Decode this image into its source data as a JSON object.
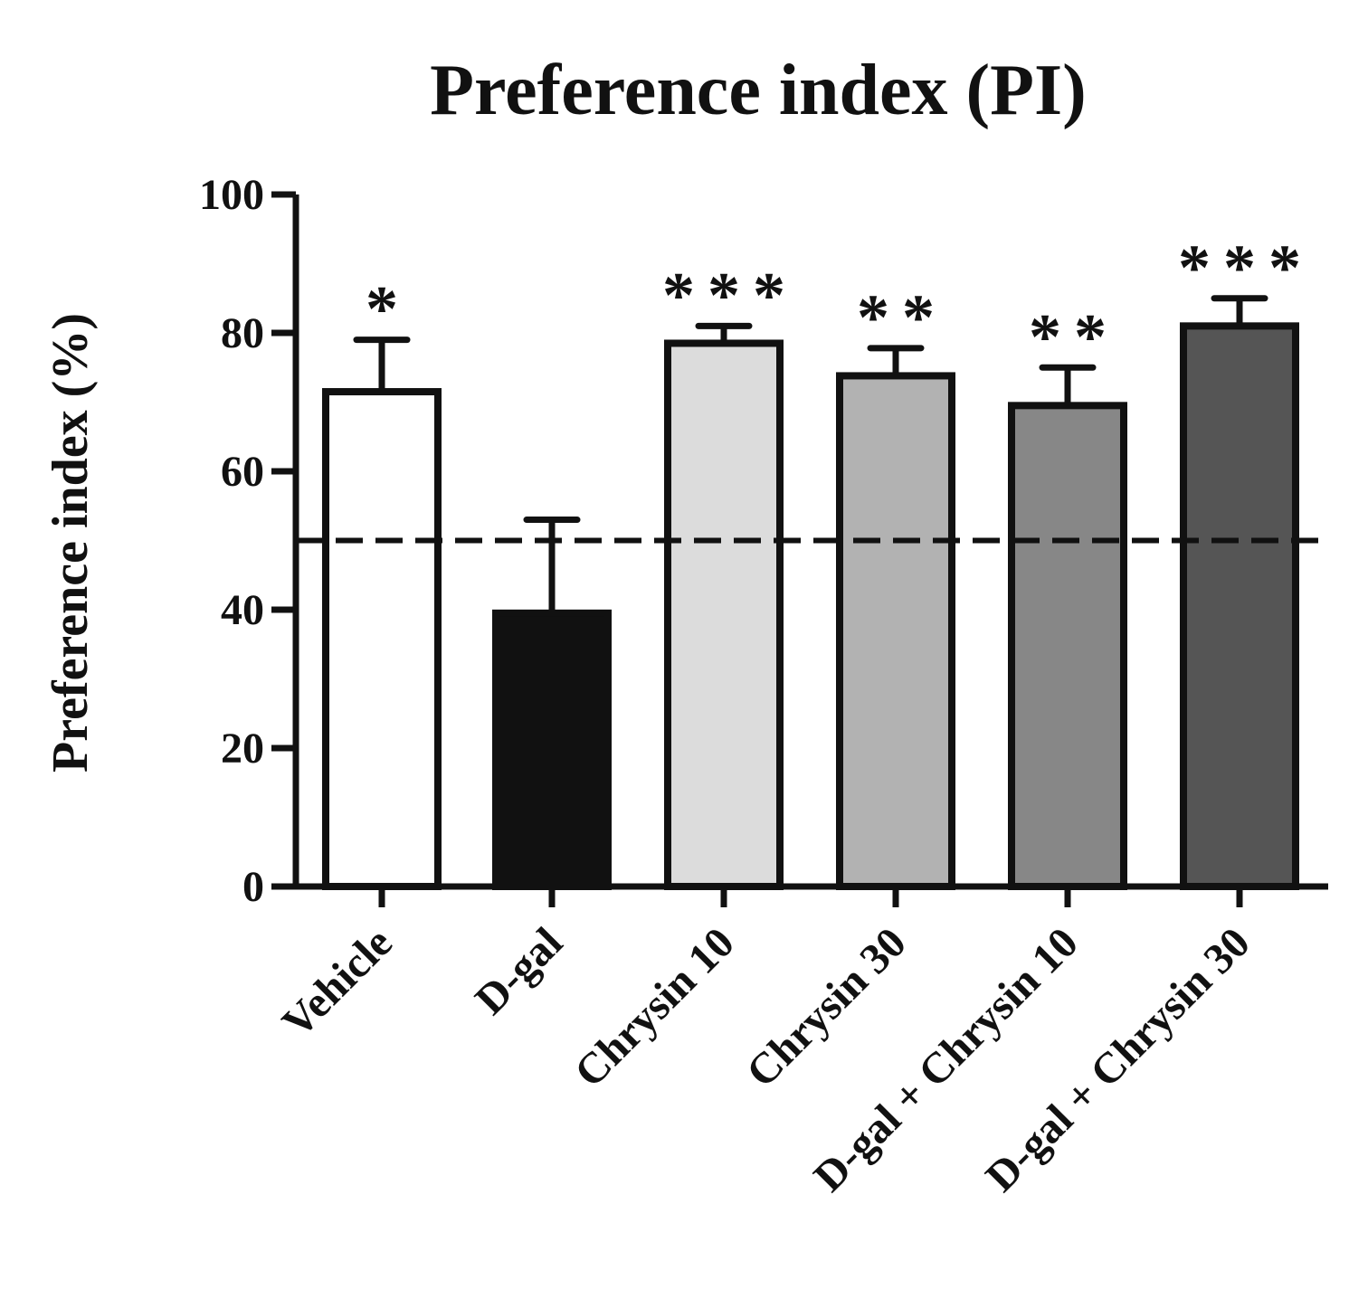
{
  "chart_data": {
    "type": "bar",
    "title": "Preference index (PI)",
    "xlabel": "",
    "ylabel": "Preference index (%)",
    "ylim": [
      0,
      100
    ],
    "yticks": [
      "0",
      "20",
      "40",
      "60",
      "80",
      "100"
    ],
    "reference_line": 50,
    "categories": [
      "Vehicle",
      "D-gal",
      "Chrysin 10",
      "Chrysin 30",
      "D-gal + Chrysin 10",
      "D-gal + Chrysin 30"
    ],
    "values": [
      71.5,
      39.5,
      78.5,
      73.8,
      69.5,
      81
    ],
    "errors": [
      7.5,
      13.5,
      2.5,
      4,
      5.5,
      4
    ],
    "significance": [
      "*",
      "",
      "***",
      "**",
      "**",
      "***"
    ],
    "bar_colors": [
      "#ffffff",
      "#111111",
      "#dcdcdc",
      "#b2b2b2",
      "#878787",
      "#555555"
    ]
  }
}
